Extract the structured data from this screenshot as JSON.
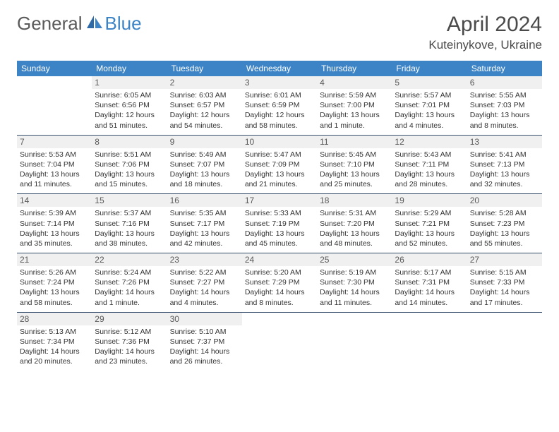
{
  "logo": {
    "text_general": "General",
    "text_blue": "Blue"
  },
  "header": {
    "title": "April 2024",
    "location": "Kuteinykove, Ukraine"
  },
  "colors": {
    "header_bg": "#3d84c6",
    "header_text": "#ffffff",
    "daynum_bg": "#f0f0f0",
    "rule": "#344e6c",
    "text": "#333333",
    "logo_gray": "#5a5a5a",
    "logo_blue": "#3d84c6"
  },
  "day_headers": [
    "Sunday",
    "Monday",
    "Tuesday",
    "Wednesday",
    "Thursday",
    "Friday",
    "Saturday"
  ],
  "fonts": {
    "title_size": 30,
    "location_size": 17,
    "dayheader_size": 12,
    "daynum_size": 12,
    "body_size": 10.5
  },
  "weeks": [
    [
      null,
      {
        "n": "1",
        "sr": "6:05 AM",
        "ss": "6:56 PM",
        "dl": "12 hours and 51 minutes."
      },
      {
        "n": "2",
        "sr": "6:03 AM",
        "ss": "6:57 PM",
        "dl": "12 hours and 54 minutes."
      },
      {
        "n": "3",
        "sr": "6:01 AM",
        "ss": "6:59 PM",
        "dl": "12 hours and 58 minutes."
      },
      {
        "n": "4",
        "sr": "5:59 AM",
        "ss": "7:00 PM",
        "dl": "13 hours and 1 minute."
      },
      {
        "n": "5",
        "sr": "5:57 AM",
        "ss": "7:01 PM",
        "dl": "13 hours and 4 minutes."
      },
      {
        "n": "6",
        "sr": "5:55 AM",
        "ss": "7:03 PM",
        "dl": "13 hours and 8 minutes."
      }
    ],
    [
      {
        "n": "7",
        "sr": "5:53 AM",
        "ss": "7:04 PM",
        "dl": "13 hours and 11 minutes."
      },
      {
        "n": "8",
        "sr": "5:51 AM",
        "ss": "7:06 PM",
        "dl": "13 hours and 15 minutes."
      },
      {
        "n": "9",
        "sr": "5:49 AM",
        "ss": "7:07 PM",
        "dl": "13 hours and 18 minutes."
      },
      {
        "n": "10",
        "sr": "5:47 AM",
        "ss": "7:09 PM",
        "dl": "13 hours and 21 minutes."
      },
      {
        "n": "11",
        "sr": "5:45 AM",
        "ss": "7:10 PM",
        "dl": "13 hours and 25 minutes."
      },
      {
        "n": "12",
        "sr": "5:43 AM",
        "ss": "7:11 PM",
        "dl": "13 hours and 28 minutes."
      },
      {
        "n": "13",
        "sr": "5:41 AM",
        "ss": "7:13 PM",
        "dl": "13 hours and 32 minutes."
      }
    ],
    [
      {
        "n": "14",
        "sr": "5:39 AM",
        "ss": "7:14 PM",
        "dl": "13 hours and 35 minutes."
      },
      {
        "n": "15",
        "sr": "5:37 AM",
        "ss": "7:16 PM",
        "dl": "13 hours and 38 minutes."
      },
      {
        "n": "16",
        "sr": "5:35 AM",
        "ss": "7:17 PM",
        "dl": "13 hours and 42 minutes."
      },
      {
        "n": "17",
        "sr": "5:33 AM",
        "ss": "7:19 PM",
        "dl": "13 hours and 45 minutes."
      },
      {
        "n": "18",
        "sr": "5:31 AM",
        "ss": "7:20 PM",
        "dl": "13 hours and 48 minutes."
      },
      {
        "n": "19",
        "sr": "5:29 AM",
        "ss": "7:21 PM",
        "dl": "13 hours and 52 minutes."
      },
      {
        "n": "20",
        "sr": "5:28 AM",
        "ss": "7:23 PM",
        "dl": "13 hours and 55 minutes."
      }
    ],
    [
      {
        "n": "21",
        "sr": "5:26 AM",
        "ss": "7:24 PM",
        "dl": "13 hours and 58 minutes."
      },
      {
        "n": "22",
        "sr": "5:24 AM",
        "ss": "7:26 PM",
        "dl": "14 hours and 1 minute."
      },
      {
        "n": "23",
        "sr": "5:22 AM",
        "ss": "7:27 PM",
        "dl": "14 hours and 4 minutes."
      },
      {
        "n": "24",
        "sr": "5:20 AM",
        "ss": "7:29 PM",
        "dl": "14 hours and 8 minutes."
      },
      {
        "n": "25",
        "sr": "5:19 AM",
        "ss": "7:30 PM",
        "dl": "14 hours and 11 minutes."
      },
      {
        "n": "26",
        "sr": "5:17 AM",
        "ss": "7:31 PM",
        "dl": "14 hours and 14 minutes."
      },
      {
        "n": "27",
        "sr": "5:15 AM",
        "ss": "7:33 PM",
        "dl": "14 hours and 17 minutes."
      }
    ],
    [
      {
        "n": "28",
        "sr": "5:13 AM",
        "ss": "7:34 PM",
        "dl": "14 hours and 20 minutes."
      },
      {
        "n": "29",
        "sr": "5:12 AM",
        "ss": "7:36 PM",
        "dl": "14 hours and 23 minutes."
      },
      {
        "n": "30",
        "sr": "5:10 AM",
        "ss": "7:37 PM",
        "dl": "14 hours and 26 minutes."
      },
      null,
      null,
      null,
      null
    ]
  ],
  "labels": {
    "sunrise": "Sunrise: ",
    "sunset": "Sunset: ",
    "daylight": "Daylight: "
  }
}
